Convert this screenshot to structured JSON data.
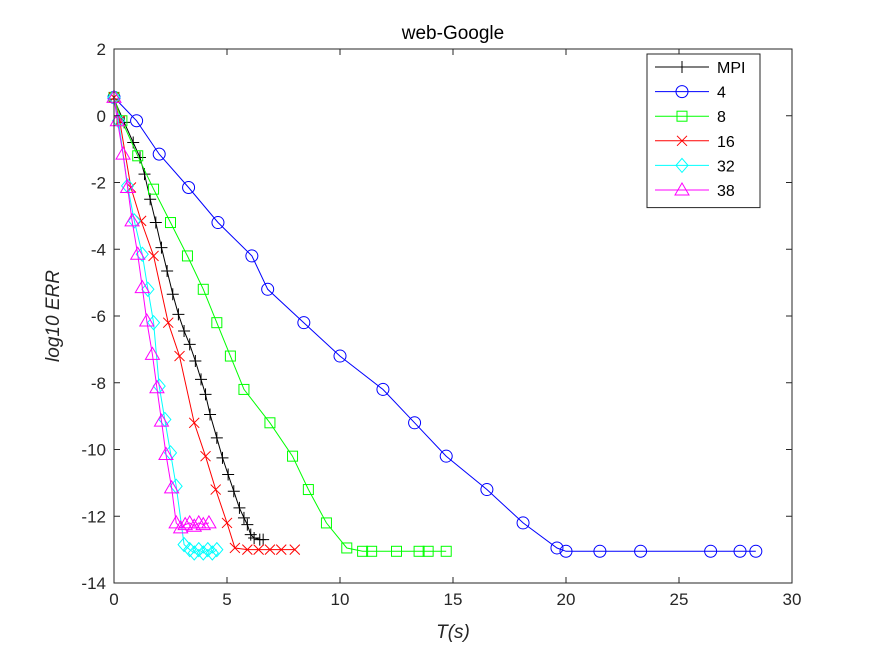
{
  "chart_data": {
    "type": "line",
    "title": "web-Google",
    "xlabel": "T(s)",
    "ylabel": "log10 ERR",
    "xlim": [
      0,
      30
    ],
    "ylim": [
      -14,
      2
    ],
    "xticks": [
      0,
      5,
      10,
      15,
      20,
      25,
      30
    ],
    "yticks": [
      -14,
      -12,
      -10,
      -8,
      -6,
      -4,
      -2,
      0,
      2
    ],
    "grid": false,
    "legend_position": "top-right",
    "series": [
      {
        "name": "MPI",
        "color": "#000000",
        "marker": "plus",
        "x": [
          0.0,
          0.45,
          0.85,
          1.15,
          1.35,
          1.6,
          1.85,
          2.1,
          2.35,
          2.6,
          2.85,
          3.1,
          3.35,
          3.6,
          3.85,
          4.05,
          4.25,
          4.55,
          4.8,
          5.05,
          5.3,
          5.55,
          5.75,
          5.9,
          6.05,
          6.2,
          6.45,
          6.6
        ],
        "y": [
          0.5,
          -0.2,
          -0.8,
          -1.25,
          -1.75,
          -2.5,
          -3.2,
          -3.95,
          -4.65,
          -5.35,
          -5.95,
          -6.45,
          -6.85,
          -7.35,
          -7.9,
          -8.35,
          -8.95,
          -9.65,
          -10.25,
          -10.75,
          -11.25,
          -11.75,
          -12.05,
          -12.25,
          -12.55,
          -12.65,
          -12.7,
          -12.7
        ]
      },
      {
        "name": "4",
        "color": "#0000FF",
        "marker": "circle",
        "x": [
          0.0,
          1.0,
          2.0,
          3.3,
          4.6,
          6.1,
          6.8,
          8.4,
          10.0,
          11.9,
          13.3,
          14.7,
          16.5,
          18.1,
          19.6,
          20.0,
          21.5,
          23.3,
          26.4,
          27.7,
          28.4
        ],
        "y": [
          0.55,
          -0.15,
          -1.15,
          -2.15,
          -3.2,
          -4.2,
          -5.2,
          -6.2,
          -7.2,
          -8.2,
          -9.2,
          -10.2,
          -11.2,
          -12.2,
          -12.95,
          -13.05,
          -13.05,
          -13.05,
          -13.05,
          -13.05,
          -13.05
        ]
      },
      {
        "name": "8",
        "color": "#00FF00",
        "marker": "square",
        "x": [
          0.0,
          0.35,
          1.05,
          1.75,
          2.5,
          3.25,
          3.95,
          4.55,
          5.15,
          5.75,
          6.9,
          7.9,
          8.6,
          9.4,
          10.3,
          11.0,
          11.4,
          12.5,
          13.5,
          13.9,
          14.7
        ],
        "y": [
          0.55,
          -0.15,
          -1.2,
          -2.2,
          -3.2,
          -4.2,
          -5.2,
          -6.2,
          -7.2,
          -8.2,
          -9.2,
          -10.2,
          -11.2,
          -12.2,
          -12.95,
          -13.05,
          -13.05,
          -13.05,
          -13.05,
          -13.05,
          -13.05
        ]
      },
      {
        "name": "16",
        "color": "#FF0000",
        "marker": "x",
        "x": [
          0.0,
          0.25,
          0.75,
          1.2,
          1.75,
          2.4,
          2.9,
          3.55,
          4.05,
          4.5,
          5.0,
          5.35,
          5.9,
          6.4,
          6.9,
          7.4,
          8.0
        ],
        "y": [
          0.55,
          -0.15,
          -2.15,
          -3.15,
          -4.2,
          -6.2,
          -7.2,
          -9.2,
          -10.2,
          -11.2,
          -12.2,
          -12.95,
          -13.0,
          -13.0,
          -13.0,
          -13.0,
          -13.0
        ]
      },
      {
        "name": "32",
        "color": "#00FFFF",
        "marker": "diamond",
        "x": [
          0.0,
          0.2,
          0.6,
          0.9,
          1.25,
          1.5,
          1.75,
          2.0,
          2.25,
          2.5,
          2.75,
          3.1,
          3.35,
          3.55,
          3.75,
          3.95,
          4.15,
          4.35,
          4.55
        ],
        "y": [
          0.55,
          -0.15,
          -2.1,
          -3.15,
          -4.15,
          -5.2,
          -6.2,
          -8.1,
          -9.1,
          -10.1,
          -11.1,
          -12.85,
          -13.0,
          -13.1,
          -13.0,
          -13.1,
          -13.0,
          -13.1,
          -13.0
        ]
      },
      {
        "name": "38",
        "color": "#FF00FF",
        "marker": "triangle",
        "x": [
          0.0,
          0.15,
          0.4,
          0.6,
          0.8,
          1.05,
          1.25,
          1.45,
          1.7,
          1.9,
          2.1,
          2.3,
          2.55,
          2.75,
          2.95,
          3.15,
          3.35,
          3.55,
          3.75,
          3.95,
          4.2
        ],
        "y": [
          0.55,
          -0.15,
          -1.15,
          -2.15,
          -3.15,
          -4.15,
          -5.15,
          -6.15,
          -7.15,
          -8.15,
          -9.15,
          -10.15,
          -11.15,
          -12.2,
          -12.35,
          -12.25,
          -12.2,
          -12.3,
          -12.2,
          -12.25,
          -12.2
        ]
      }
    ]
  }
}
